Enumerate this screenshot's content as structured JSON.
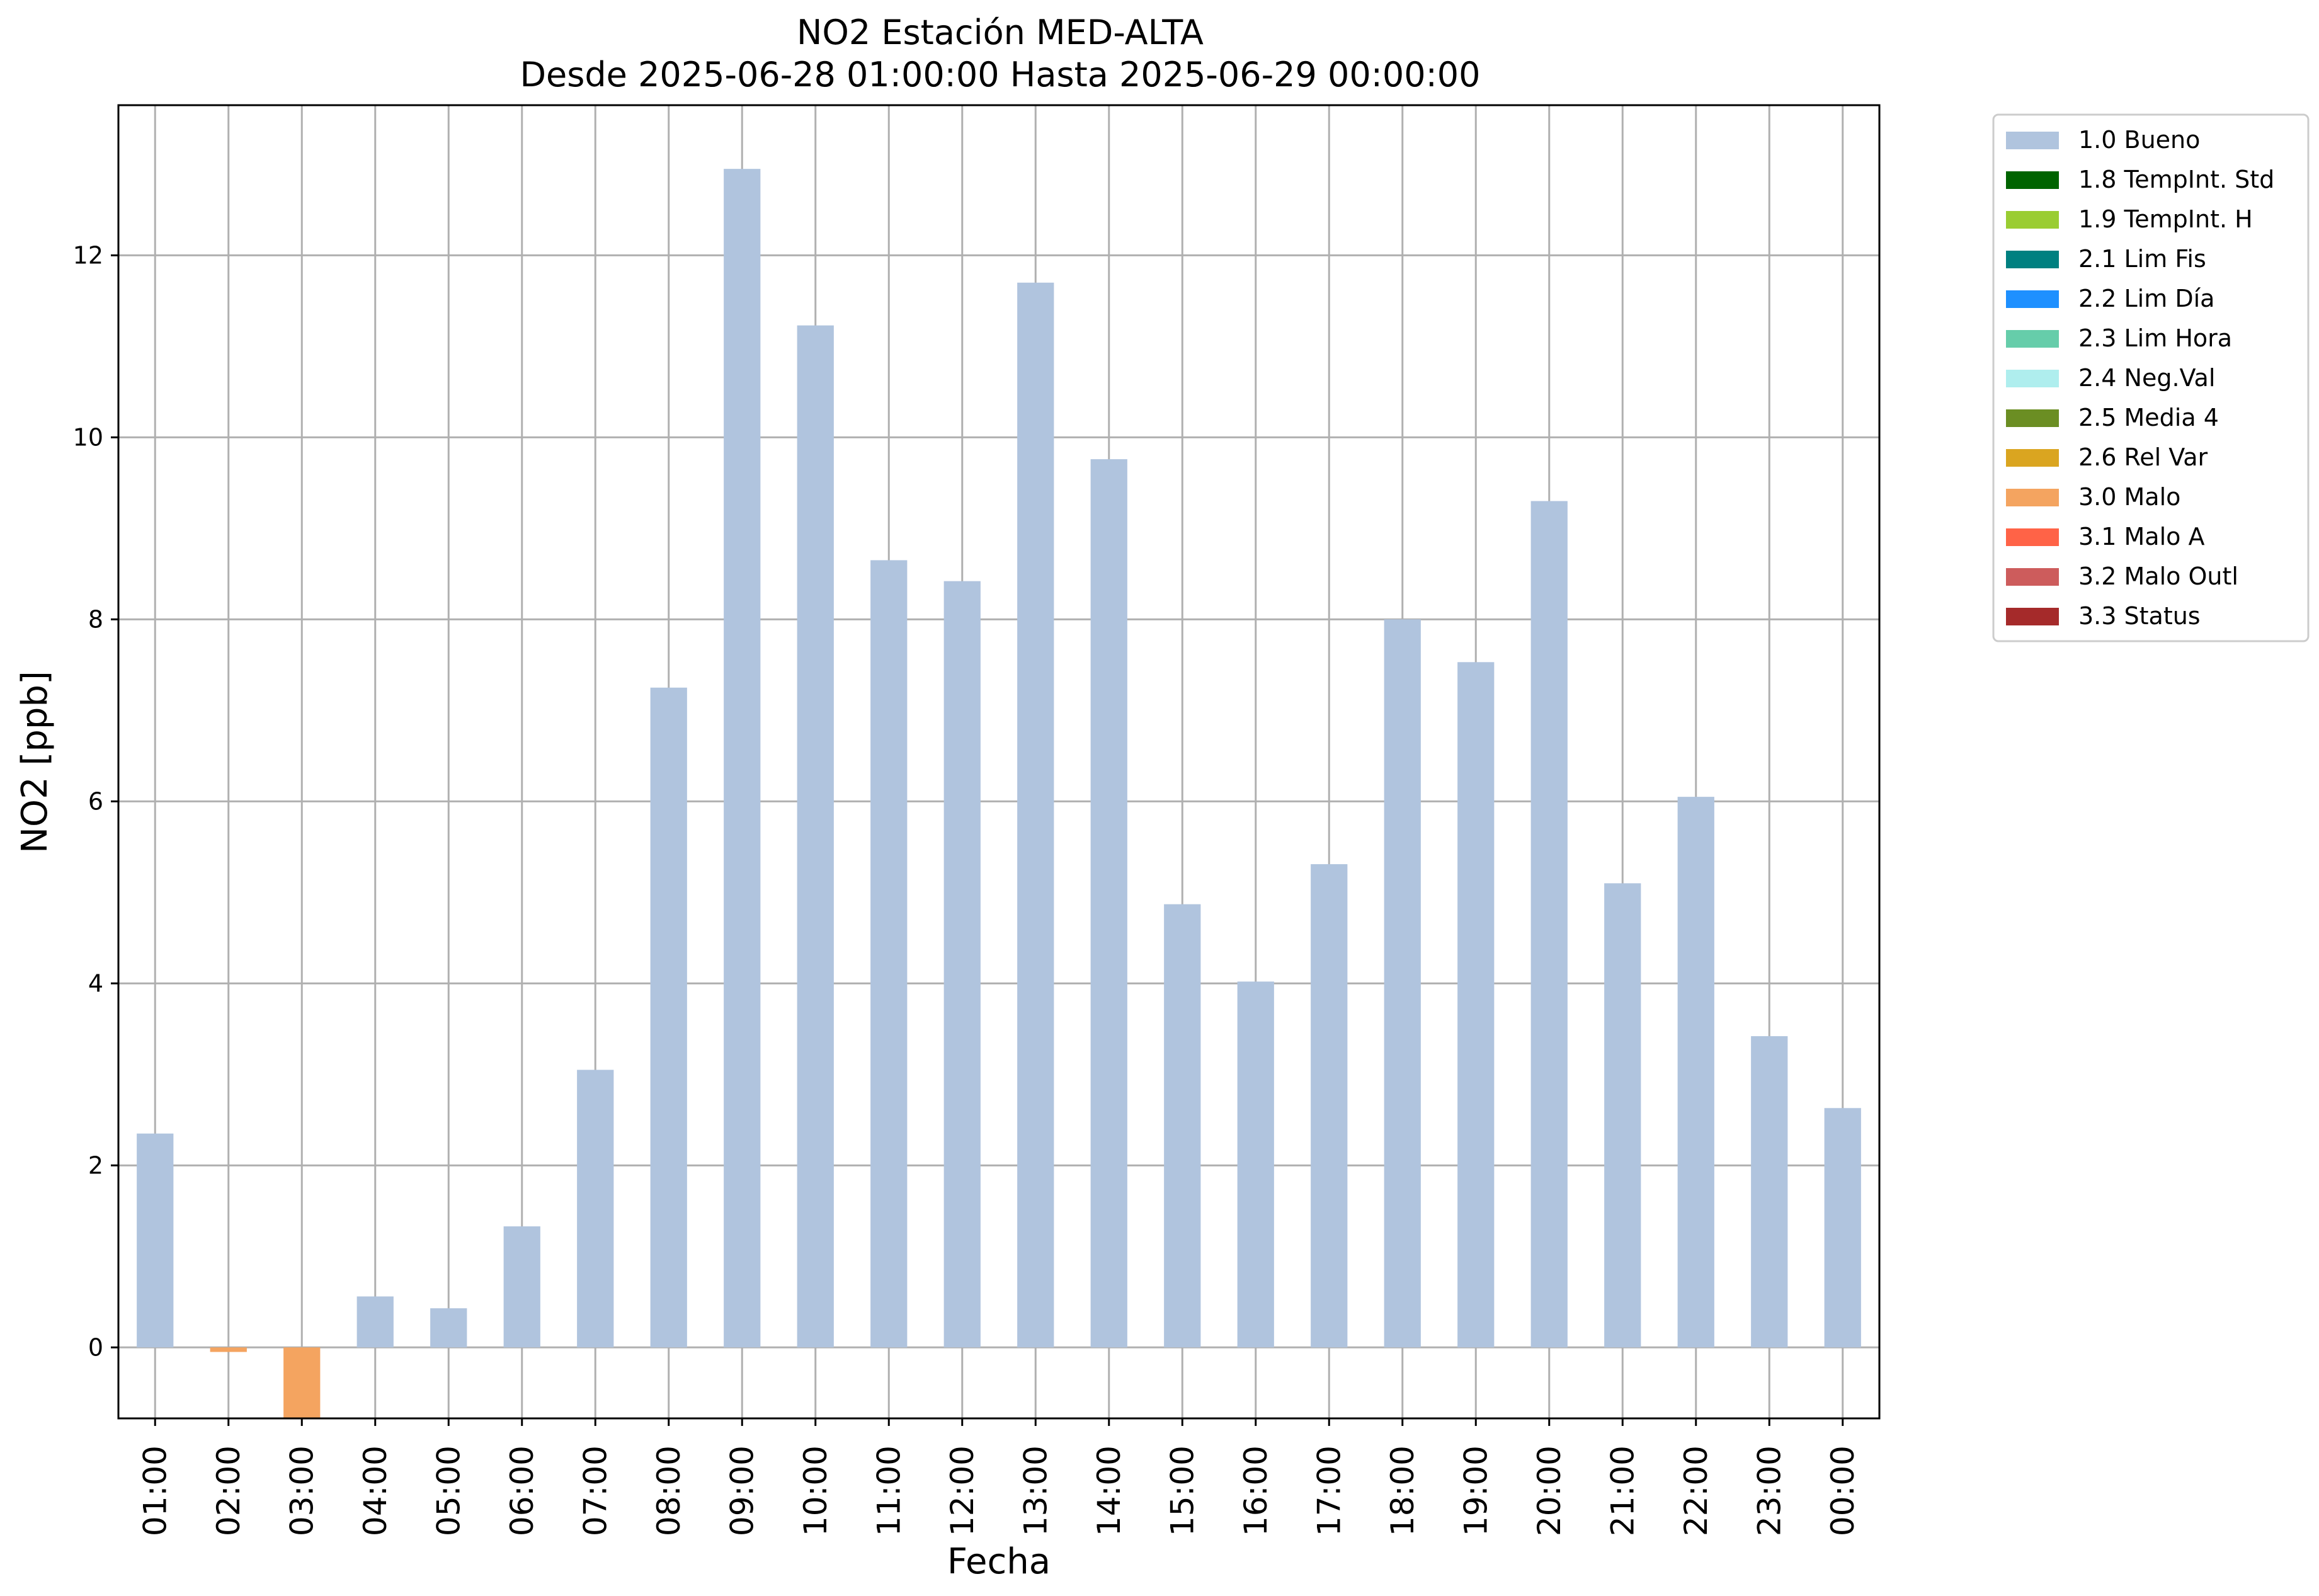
{
  "chart_data": {
    "type": "bar",
    "title": "NO2 Estación MED-ALTA",
    "subtitle": "Desde 2025-06-28 01:00:00 Hasta 2025-06-29 00:00:00",
    "xlabel": "Fecha",
    "ylabel": "NO2 [ppb]",
    "ylim": [
      -0.78,
      13.65
    ],
    "yticks": [
      0,
      2,
      4,
      6,
      8,
      10,
      12
    ],
    "grid": true,
    "legend_position": "outside-top-right",
    "categories": [
      "01:00",
      "02:00",
      "03:00",
      "04:00",
      "05:00",
      "06:00",
      "07:00",
      "08:00",
      "09:00",
      "10:00",
      "11:00",
      "12:00",
      "13:00",
      "14:00",
      "15:00",
      "16:00",
      "17:00",
      "18:00",
      "19:00",
      "20:00",
      "21:00",
      "22:00",
      "23:00",
      "00:00"
    ],
    "values": [
      2.35,
      -0.05,
      -0.78,
      0.56,
      0.43,
      1.33,
      3.05,
      7.25,
      12.95,
      11.23,
      8.65,
      8.42,
      11.7,
      9.76,
      4.87,
      4.02,
      5.31,
      8.0,
      7.53,
      9.3,
      5.1,
      6.05,
      3.42,
      2.63
    ],
    "flags": [
      "1.0 Bueno",
      "3.0 Malo",
      "3.0 Malo",
      "1.0 Bueno",
      "1.0 Bueno",
      "1.0 Bueno",
      "1.0 Bueno",
      "1.0 Bueno",
      "1.0 Bueno",
      "1.0 Bueno",
      "1.0 Bueno",
      "1.0 Bueno",
      "1.0 Bueno",
      "1.0 Bueno",
      "1.0 Bueno",
      "1.0 Bueno",
      "1.0 Bueno",
      "1.0 Bueno",
      "1.0 Bueno",
      "1.0 Bueno",
      "1.0 Bueno",
      "1.0 Bueno",
      "1.0 Bueno",
      "1.0 Bueno"
    ],
    "legend": [
      {
        "name": "1.0 Bueno",
        "color": "#b0c4de"
      },
      {
        "name": "1.8 TempInt. Std",
        "color": "#006400"
      },
      {
        "name": "1.9 TempInt. H",
        "color": "#9acd32"
      },
      {
        "name": "2.1 Lim Fis",
        "color": "#008080"
      },
      {
        "name": "2.2 Lim Día",
        "color": "#1e90ff"
      },
      {
        "name": "2.3 Lim Hora",
        "color": "#66cdaa"
      },
      {
        "name": "2.4 Neg.Val",
        "color": "#afeeee"
      },
      {
        "name": "2.5 Media 4",
        "color": "#6b8e23"
      },
      {
        "name": "2.6 Rel Var",
        "color": "#daa520"
      },
      {
        "name": "3.0 Malo",
        "color": "#f4a460"
      },
      {
        "name": "3.1 Malo A",
        "color": "#ff6347"
      },
      {
        "name": "3.2 Malo Outl",
        "color": "#cd5c5c"
      },
      {
        "name": "3.3 Status",
        "color": "#a52a2a"
      }
    ]
  }
}
